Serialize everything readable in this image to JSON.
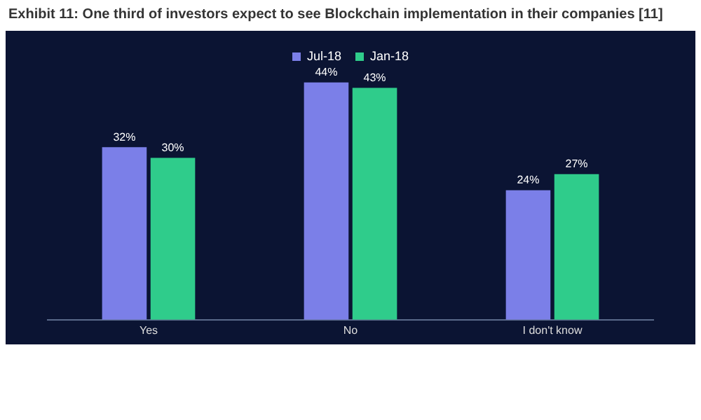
{
  "chart_data": {
    "type": "bar",
    "title": "Exhibit 11: One third of investors expect to see Blockchain implementation in their companies [11]",
    "categories": [
      "Yes",
      "No",
      "I don't know"
    ],
    "series": [
      {
        "name": "Jul-18",
        "color": "#7b7fe8",
        "values": [
          32,
          44,
          24
        ],
        "value_labels": [
          "32%",
          "44%",
          "24%"
        ]
      },
      {
        "name": "Jan-18",
        "color": "#2fcc8b",
        "values": [
          30,
          43,
          27
        ],
        "value_labels": [
          "30%",
          "43%",
          "27%"
        ]
      }
    ],
    "legend": "top",
    "grid": false,
    "tick_labels": "x"
  }
}
